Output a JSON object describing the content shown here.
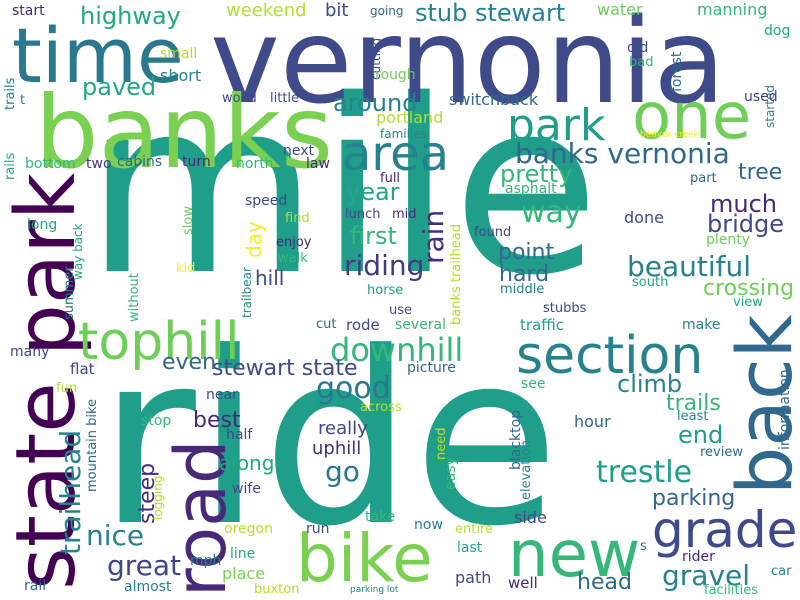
{
  "palette": {
    "dark_purple": "#440154",
    "indigo": "#482878",
    "blue": "#3e4a89",
    "slate_blue": "#31688e",
    "teal": "#26828e",
    "green_teal": "#1f9e89",
    "green": "#35b779",
    "lime": "#6ece58",
    "light_green": "#b5de2b",
    "yellow": "#fde725"
  },
  "words": [
    {
      "text": "mile",
      "color": "#1f9e89"
    },
    {
      "text": "ride",
      "color": "#1f9e89"
    },
    {
      "text": "vernonia",
      "color": "#3e4a89"
    },
    {
      "text": "banks",
      "color": "#7ad151"
    },
    {
      "text": "time",
      "color": "#2a788e"
    },
    {
      "text": "state park",
      "color": "#440154"
    },
    {
      "text": "road",
      "color": "#482878"
    },
    {
      "text": "back",
      "color": "#31688e"
    },
    {
      "text": "one",
      "color": "#6ece58"
    },
    {
      "text": "bike",
      "color": "#7ad151"
    },
    {
      "text": "new",
      "color": "#35b779"
    },
    {
      "text": "section",
      "color": "#26828e"
    },
    {
      "text": "grade",
      "color": "#3e4a89"
    },
    {
      "text": "tophill",
      "color": "#6ece58"
    },
    {
      "text": "area",
      "color": "#26828e"
    },
    {
      "text": "park",
      "color": "#1f9e89"
    },
    {
      "text": "banks vernonia",
      "color": "#31688e"
    },
    {
      "text": "downhill",
      "color": "#35b779"
    },
    {
      "text": "trailhead",
      "color": "#26828e"
    },
    {
      "text": "great",
      "color": "#414487"
    },
    {
      "text": "nice",
      "color": "#26828e"
    },
    {
      "text": "beautiful",
      "color": "#26828e"
    },
    {
      "text": "riding",
      "color": "#443983"
    },
    {
      "text": "trestle",
      "color": "#1f9e89"
    },
    {
      "text": "gravel",
      "color": "#26828e"
    },
    {
      "text": "good",
      "color": "#2a788e"
    },
    {
      "text": "way",
      "color": "#35b779"
    },
    {
      "text": "rain",
      "color": "#472d7b"
    },
    {
      "text": "first",
      "color": "#35b779"
    },
    {
      "text": "highway",
      "color": "#22a884"
    },
    {
      "text": "stub stewart",
      "color": "#26828e"
    },
    {
      "text": "paved",
      "color": "#22a884"
    },
    {
      "text": "around",
      "color": "#26828e"
    },
    {
      "text": "pretty",
      "color": "#35b779"
    },
    {
      "text": "year",
      "color": "#22a884"
    },
    {
      "text": "much",
      "color": "#482878"
    },
    {
      "text": "bridge",
      "color": "#3e4a89"
    },
    {
      "text": "tree",
      "color": "#31688e"
    },
    {
      "text": "point",
      "color": "#31688e"
    },
    {
      "text": "hard",
      "color": "#31688e"
    },
    {
      "text": "crossing",
      "color": "#6ece58"
    },
    {
      "text": "climb",
      "color": "#26828e"
    },
    {
      "text": "end",
      "color": "#1f9e89"
    },
    {
      "text": "trails",
      "color": "#35b779"
    },
    {
      "text": "parking",
      "color": "#31688e"
    },
    {
      "text": "go",
      "color": "#2a788e"
    },
    {
      "text": "stewart state",
      "color": "#3e4a89"
    },
    {
      "text": "even",
      "color": "#31688e"
    },
    {
      "text": "best",
      "color": "#482878"
    },
    {
      "text": "steep",
      "color": "#472d7b"
    },
    {
      "text": "along",
      "color": "#22a884"
    },
    {
      "text": "really",
      "color": "#414487"
    },
    {
      "text": "uphill",
      "color": "#472d7b"
    },
    {
      "text": "day",
      "color": "#fde725"
    },
    {
      "text": "hill",
      "color": "#3e4a89"
    },
    {
      "text": "weekend",
      "color": "#b5de2b"
    },
    {
      "text": "bit",
      "color": "#3e4a89"
    },
    {
      "text": "water",
      "color": "#6ece58"
    },
    {
      "text": "manning",
      "color": "#35b779"
    },
    {
      "text": "start",
      "color": "#482878"
    },
    {
      "text": "going",
      "color": "#31688e"
    },
    {
      "text": "cutting",
      "color": "#3e4a89"
    },
    {
      "text": "forest",
      "color": "#31688e"
    },
    {
      "text": "old",
      "color": "#3e4a89"
    },
    {
      "text": "bad",
      "color": "#35b779"
    },
    {
      "text": "dog",
      "color": "#22a884"
    },
    {
      "text": "started",
      "color": "#26828e"
    },
    {
      "text": "used",
      "color": "#414487"
    },
    {
      "text": "small",
      "color": "#b5de2b"
    },
    {
      "text": "short",
      "color": "#26828e"
    },
    {
      "text": "rough",
      "color": "#6ece58"
    },
    {
      "text": "wood",
      "color": "#3e4a89"
    },
    {
      "text": "little",
      "color": "#3e4a89"
    },
    {
      "text": "switchback",
      "color": "#31688e"
    },
    {
      "text": "portland",
      "color": "#b5de2b"
    },
    {
      "text": "families",
      "color": "#26828e"
    },
    {
      "text": "beaver creek",
      "color": "#fde725"
    },
    {
      "text": "rails",
      "color": "#22a884"
    },
    {
      "text": "trails",
      "color": "#26828e"
    },
    {
      "text": "t",
      "color": "#26828e"
    },
    {
      "text": "bottom",
      "color": "#35b779"
    },
    {
      "text": "two",
      "color": "#443983"
    },
    {
      "text": "cabins",
      "color": "#31688e"
    },
    {
      "text": "turn",
      "color": "#482878"
    },
    {
      "text": "north",
      "color": "#35b779"
    },
    {
      "text": "law",
      "color": "#482878"
    },
    {
      "text": "next",
      "color": "#3e4a89"
    },
    {
      "text": "banks trailhead",
      "color": "#b5de2b"
    },
    {
      "text": "full",
      "color": "#482878"
    },
    {
      "text": "asphalt",
      "color": "#35b779"
    },
    {
      "text": "part",
      "color": "#31688e"
    },
    {
      "text": "speed",
      "color": "#3e4a89"
    },
    {
      "text": "find",
      "color": "#b5de2b"
    },
    {
      "text": "lunch",
      "color": "#3e4a89"
    },
    {
      "text": "mid",
      "color": "#482878"
    },
    {
      "text": "done",
      "color": "#3e4a89"
    },
    {
      "text": "long",
      "color": "#22a884"
    },
    {
      "text": "way back",
      "color": "#22a884"
    },
    {
      "text": "slow",
      "color": "#6ece58"
    },
    {
      "text": "enjoy",
      "color": "#482878"
    },
    {
      "text": "walk",
      "color": "#35b779"
    },
    {
      "text": "found",
      "color": "#3e4a89"
    },
    {
      "text": "plenty",
      "color": "#6ece58"
    },
    {
      "text": "summer",
      "color": "#2a788e"
    },
    {
      "text": "kid",
      "color": "#fde725"
    },
    {
      "text": "without",
      "color": "#35b779"
    },
    {
      "text": "trailbear",
      "color": "#26828e"
    },
    {
      "text": "horse",
      "color": "#1f9e89"
    },
    {
      "text": "middle",
      "color": "#26828e"
    },
    {
      "text": "south",
      "color": "#22a884"
    },
    {
      "text": "stubbs",
      "color": "#3e4a89"
    },
    {
      "text": "view",
      "color": "#22a884"
    },
    {
      "text": "use",
      "color": "#3e4a89"
    },
    {
      "text": "cut",
      "color": "#31688e"
    },
    {
      "text": "rode",
      "color": "#3e4a89"
    },
    {
      "text": "several",
      "color": "#35b779"
    },
    {
      "text": "traffic",
      "color": "#1f9e89"
    },
    {
      "text": "make",
      "color": "#26828e"
    },
    {
      "text": "information",
      "color": "#31688e"
    },
    {
      "text": "many",
      "color": "#3e4a89"
    },
    {
      "text": "flat",
      "color": "#3e4a89"
    },
    {
      "text": "picture",
      "color": "#31688e"
    },
    {
      "text": "see",
      "color": "#35b779"
    },
    {
      "text": "fun",
      "color": "#b5de2b"
    },
    {
      "text": "mountain bike",
      "color": "#31688e"
    },
    {
      "text": "near",
      "color": "#3e4a89"
    },
    {
      "text": "across",
      "color": "#b5de2b"
    },
    {
      "text": "hour",
      "color": "#31688e"
    },
    {
      "text": "least",
      "color": "#26828e"
    },
    {
      "text": "stop",
      "color": "#35b779"
    },
    {
      "text": "half",
      "color": "#3e4a89"
    },
    {
      "text": "need",
      "color": "#b5de2b"
    },
    {
      "text": "easy",
      "color": "#35b779"
    },
    {
      "text": "blacktop",
      "color": "#31688e"
    },
    {
      "text": "elevation",
      "color": "#26828e"
    },
    {
      "text": "review",
      "color": "#31688e"
    },
    {
      "text": "logging",
      "color": "#b5de2b"
    },
    {
      "text": "wife",
      "color": "#3e4a89"
    },
    {
      "text": "oregon",
      "color": "#b5de2b"
    },
    {
      "text": "run",
      "color": "#3e4a89"
    },
    {
      "text": "take",
      "color": "#35b779"
    },
    {
      "text": "now",
      "color": "#26828e"
    },
    {
      "text": "entire",
      "color": "#b5de2b"
    },
    {
      "text": "side",
      "color": "#3e4a89"
    },
    {
      "text": "s",
      "color": "#26828e"
    },
    {
      "text": "last",
      "color": "#22a884"
    },
    {
      "text": "rider",
      "color": "#482878"
    },
    {
      "text": "mph",
      "color": "#26828e"
    },
    {
      "text": "line",
      "color": "#22a884"
    },
    {
      "text": "place",
      "color": "#7ad151"
    },
    {
      "text": "rail",
      "color": "#31688e"
    },
    {
      "text": "almost",
      "color": "#26828e"
    },
    {
      "text": "buxton",
      "color": "#b5de2b"
    },
    {
      "text": "path",
      "color": "#3e4a89"
    },
    {
      "text": "well",
      "color": "#482878"
    },
    {
      "text": "head",
      "color": "#31688e"
    },
    {
      "text": "parking lot",
      "color": "#26828e"
    },
    {
      "text": "facilities",
      "color": "#35b779"
    },
    {
      "text": "car",
      "color": "#26828e"
    }
  ]
}
